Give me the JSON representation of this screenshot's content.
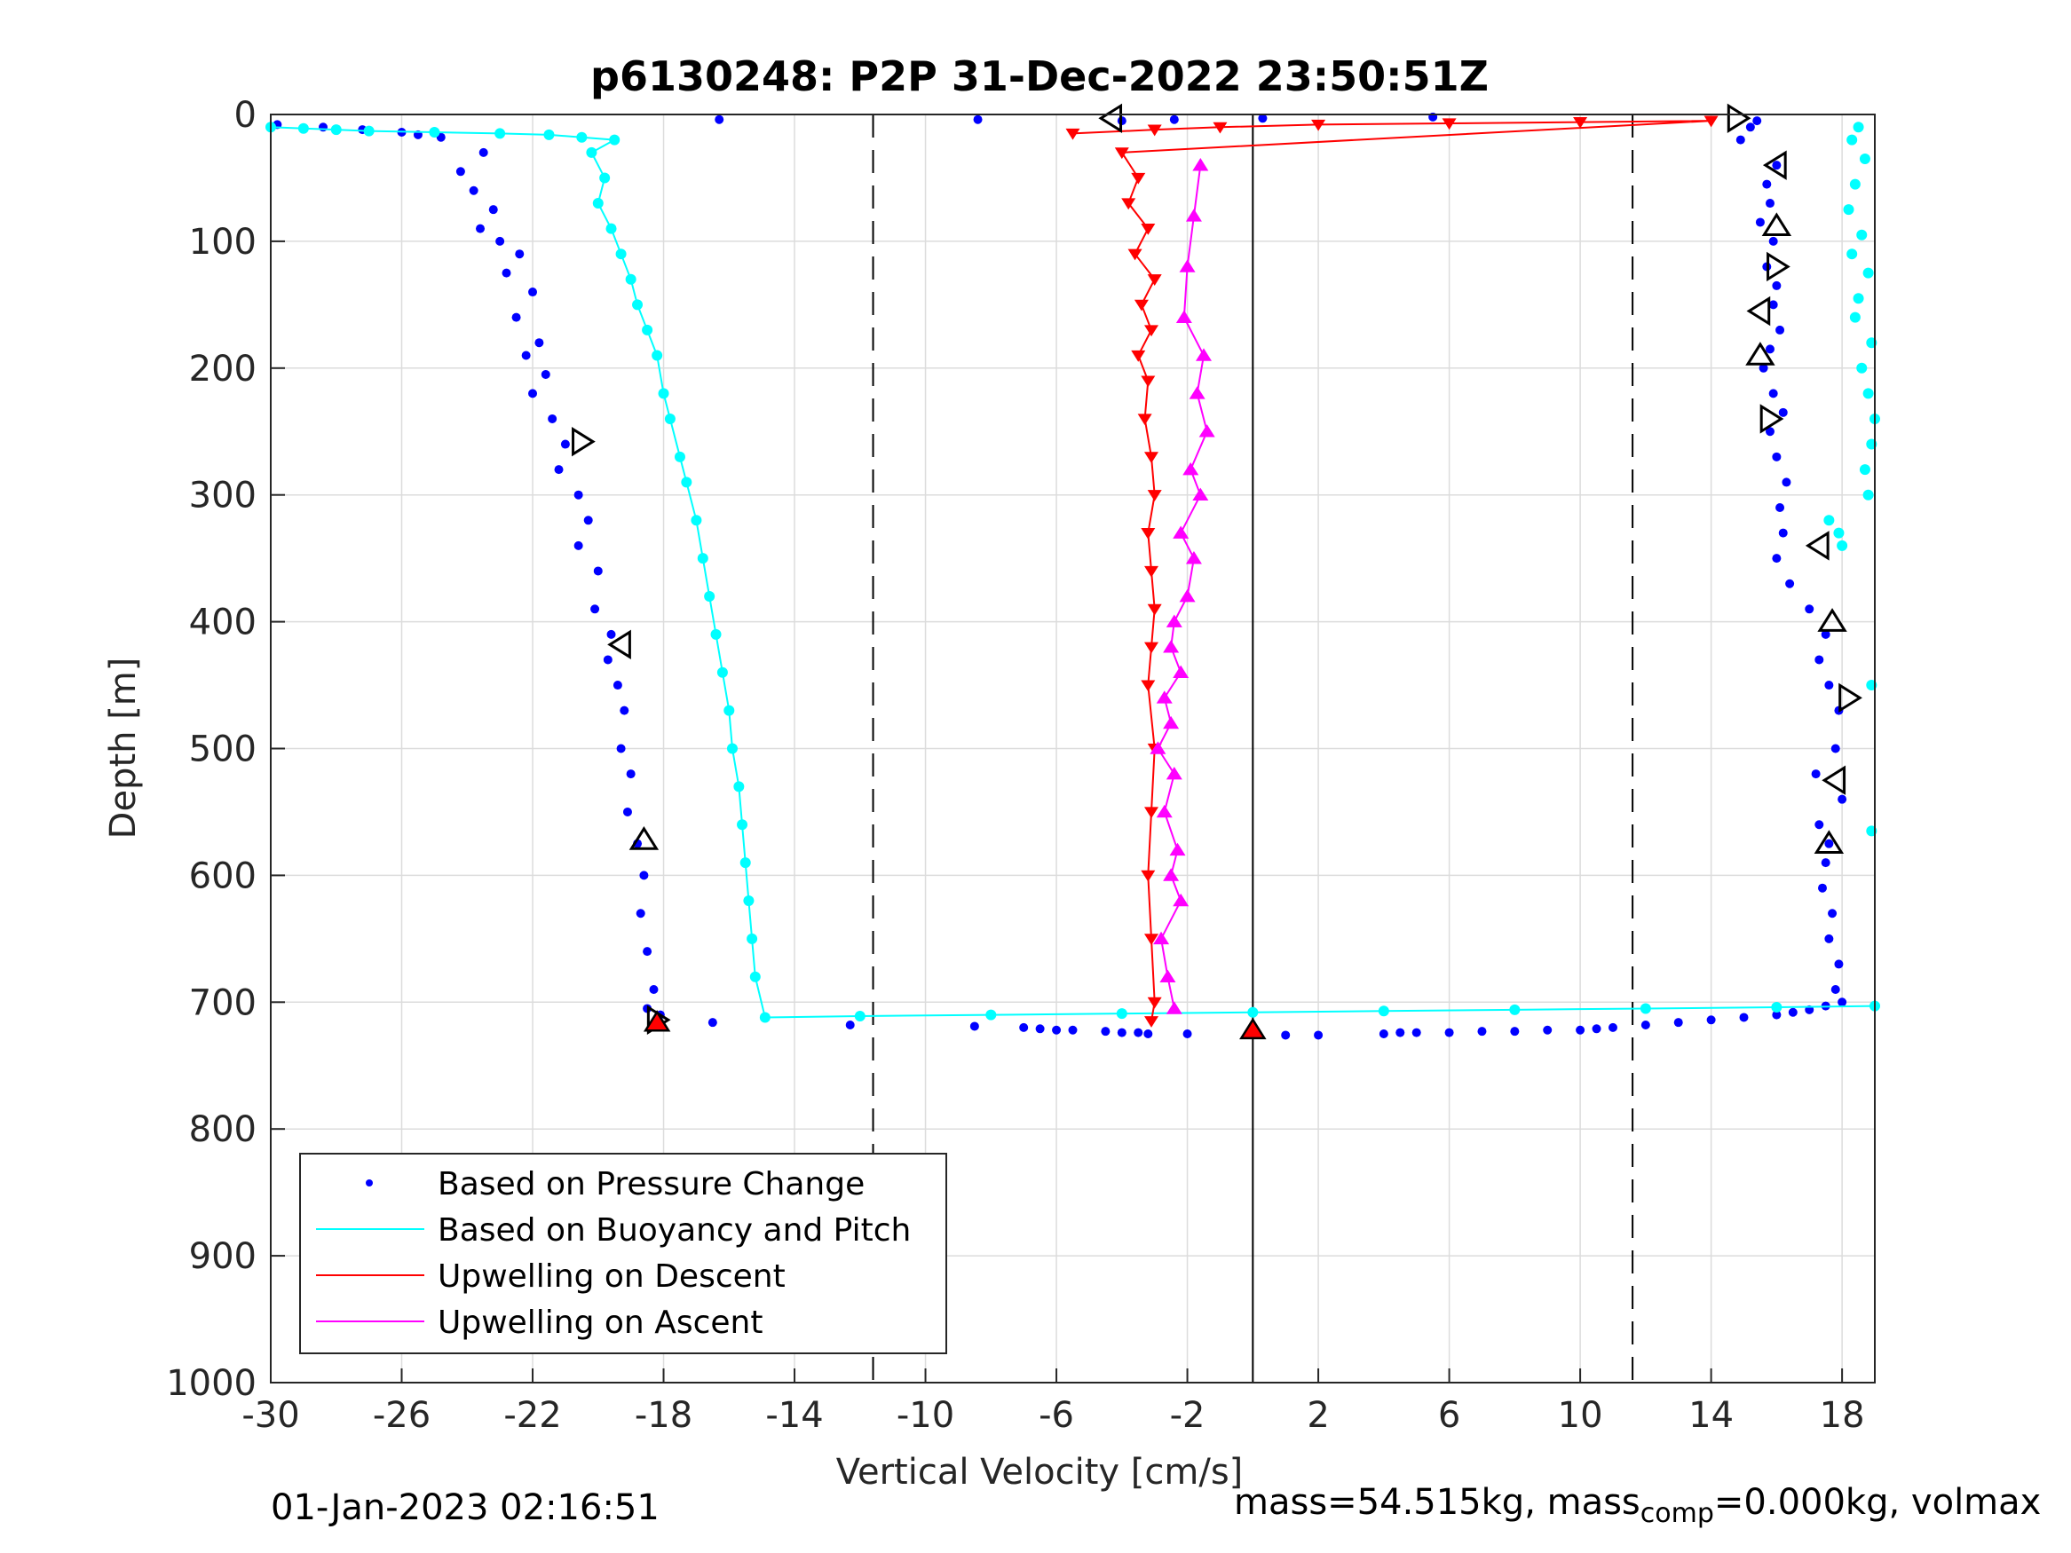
{
  "chart_data": {
    "type": "scatter",
    "title": "p6130248: P2P 31-Dec-2022 23:50:51Z",
    "xlabel": "Vertical Velocity [cm/s]",
    "ylabel": "Depth [m]",
    "xlim": [
      -30,
      19
    ],
    "ylim": [
      0,
      1000
    ],
    "y_reversed": true,
    "grid": true,
    "x_ticks": [
      -30,
      -26,
      -22,
      -18,
      -14,
      -10,
      -6,
      -2,
      2,
      6,
      10,
      14,
      18
    ],
    "y_ticks": [
      0,
      100,
      200,
      300,
      400,
      500,
      600,
      700,
      800,
      900,
      1000
    ],
    "vlines": [
      {
        "x": -11.6,
        "style": "dashed"
      },
      {
        "x": 0,
        "style": "solid"
      },
      {
        "x": 11.6,
        "style": "dashed"
      }
    ],
    "legend": {
      "placement": "bottom-left",
      "entries": [
        {
          "label": "Based on Pressure Change",
          "color": "#0000ff",
          "marker": "dot"
        },
        {
          "label": "Based on Buoyancy and Pitch",
          "color": "#00ffff",
          "marker": "line"
        },
        {
          "label": "Upwelling on Descent",
          "color": "#ff0000",
          "marker": "line"
        },
        {
          "label": "Upwelling on Ascent",
          "color": "#ff00ff",
          "marker": "line"
        }
      ]
    },
    "series": [
      {
        "name": "Based on Pressure Change (descent)",
        "color": "#0000ff",
        "x": [
          -29.8,
          -28.4,
          -27.2,
          -26.0,
          -25.5,
          -24.8,
          -23.5,
          -24.2,
          -23.8,
          -23.2,
          -23.6,
          -23.0,
          -22.4,
          -22.8,
          -22.0,
          -22.5,
          -21.8,
          -22.2,
          -21.6,
          -22.0,
          -21.4,
          -21.0,
          -21.2,
          -20.6,
          -20.3,
          -20.6,
          -20.0,
          -20.1,
          -19.6,
          -19.7,
          -19.4,
          -19.2,
          -19.3,
          -19.0,
          -19.1,
          -18.8,
          -18.6,
          -18.7,
          -18.5,
          -18.3,
          -18.5,
          -18.1,
          -18.2
        ],
        "y": [
          8,
          10,
          12,
          14,
          16,
          18,
          30,
          45,
          60,
          75,
          90,
          100,
          110,
          125,
          140,
          160,
          180,
          190,
          205,
          220,
          240,
          260,
          280,
          300,
          320,
          340,
          360,
          390,
          410,
          430,
          450,
          470,
          500,
          520,
          550,
          575,
          600,
          630,
          660,
          690,
          705,
          710,
          714
        ]
      },
      {
        "name": "Based on Pressure Change (ascent)",
        "color": "#0000ff",
        "x": [
          18.0,
          17.8,
          17.9,
          17.6,
          17.7,
          17.4,
          17.5,
          17.6,
          17.3,
          18.0,
          17.2,
          17.8,
          17.9,
          17.6,
          17.3,
          17.5,
          17.0,
          16.4,
          16.0,
          16.2,
          16.1,
          16.3,
          16.0,
          15.8,
          16.2,
          15.9,
          15.6,
          15.8,
          16.1,
          15.9,
          16.0,
          15.7,
          15.9,
          15.5,
          15.8,
          15.7,
          16.0,
          14.9,
          15.2,
          15.4
        ],
        "y": [
          700,
          690,
          670,
          650,
          630,
          610,
          590,
          575,
          560,
          540,
          520,
          500,
          470,
          450,
          430,
          410,
          390,
          370,
          350,
          330,
          310,
          290,
          270,
          250,
          235,
          220,
          200,
          185,
          170,
          150,
          135,
          120,
          100,
          85,
          70,
          55,
          40,
          20,
          10,
          5
        ]
      },
      {
        "name": "Based on Pressure Change (transition)",
        "color": "#0000ff",
        "x": [
          -16.5,
          -12.3,
          -8.5,
          -7.0,
          -6.5,
          -6.0,
          -5.5,
          -4.5,
          -4.0,
          -3.5,
          -3.2,
          -2.0,
          1.0,
          2.0,
          4.0,
          4.5,
          5.0,
          6.0,
          7.0,
          8.0,
          9.0,
          10.0,
          10.5,
          11.0,
          12.0,
          13.0,
          14.0,
          15.0,
          16.0,
          16.5,
          17.0,
          17.5,
          -16.3,
          -8.4,
          -4.0,
          -2.4,
          0.3,
          5.5
        ],
        "y": [
          716,
          718,
          719,
          720,
          721,
          722,
          722,
          723,
          724,
          724,
          725,
          725,
          726,
          726,
          725,
          724,
          724,
          724,
          723,
          723,
          722,
          722,
          721,
          720,
          718,
          716,
          714,
          712,
          710,
          708,
          706,
          703,
          4,
          4,
          5,
          4,
          3,
          2
        ]
      },
      {
        "name": "Based on Buoyancy and Pitch",
        "color": "#00ffff",
        "x": [
          -30.0,
          -29.0,
          -28.0,
          -27.0,
          -25.0,
          -23.0,
          -21.5,
          -20.5,
          -19.5,
          -20.2,
          -19.8,
          -20.0,
          -19.6,
          -19.3,
          -19.0,
          -18.8,
          -18.5,
          -18.2,
          -18.0,
          -17.8,
          -17.5,
          -17.3,
          -17.0,
          -16.8,
          -16.6,
          -16.4,
          -16.2,
          -16.0,
          -15.9,
          -15.7,
          -15.6,
          -15.5,
          -15.4,
          -15.3,
          -15.2,
          -14.9,
          -12.0,
          -8.0,
          -4.0,
          0.0,
          4.0,
          8.0,
          12.0,
          16.0,
          19.0
        ],
        "y": [
          10,
          11,
          12,
          13,
          14,
          15,
          16,
          18,
          20,
          30,
          50,
          70,
          90,
          110,
          130,
          150,
          170,
          190,
          220,
          240,
          270,
          290,
          320,
          350,
          380,
          410,
          440,
          470,
          500,
          530,
          560,
          590,
          620,
          650,
          680,
          712,
          711,
          710,
          709,
          708,
          707,
          706,
          705,
          704,
          703
        ]
      },
      {
        "name": "Based on Buoyancy and Pitch (ascent)",
        "color": "#00ffff",
        "x": [
          18.5,
          18.3,
          18.7,
          18.4,
          18.2,
          18.6,
          18.3,
          18.8,
          18.5,
          18.4,
          18.9,
          18.6,
          18.8,
          19.0,
          18.9,
          18.7,
          18.8,
          17.6,
          17.9,
          18.0,
          18.9,
          18.9
        ],
        "y": [
          10,
          20,
          35,
          55,
          75,
          95,
          110,
          125,
          145,
          160,
          180,
          200,
          220,
          240,
          260,
          280,
          300,
          320,
          330,
          340,
          450,
          565
        ]
      },
      {
        "name": "Upwelling on Descent",
        "color": "#ff0000",
        "x": [
          -5.5,
          -3.0,
          -1.0,
          2.0,
          6.0,
          10.0,
          14.0,
          -4.0,
          -3.5,
          -3.8,
          -3.2,
          -3.6,
          -3.0,
          -3.4,
          -3.1,
          -3.5,
          -3.2,
          -3.3,
          -3.1,
          -3.0,
          -3.2,
          -3.1,
          -3.0,
          -3.1,
          -3.2,
          -3.0,
          -3.1,
          -3.2,
          -3.1,
          -3.0,
          -3.1
        ],
        "y": [
          15,
          12,
          10,
          8,
          7,
          6,
          5,
          30,
          50,
          70,
          90,
          110,
          130,
          150,
          170,
          190,
          210,
          240,
          270,
          300,
          330,
          360,
          390,
          420,
          450,
          500,
          550,
          600,
          650,
          700,
          715
        ]
      },
      {
        "name": "Upwelling on Ascent",
        "color": "#ff00ff",
        "x": [
          -2.4,
          -2.6,
          -2.8,
          -2.2,
          -2.5,
          -2.3,
          -2.7,
          -2.4,
          -2.9,
          -2.5,
          -2.7,
          -2.2,
          -2.5,
          -2.4,
          -2.0,
          -1.8,
          -2.2,
          -1.6,
          -1.9,
          -1.4,
          -1.7,
          -1.5,
          -2.1,
          -2.0,
          -1.8,
          -1.6
        ],
        "y": [
          705,
          680,
          650,
          620,
          600,
          580,
          550,
          520,
          500,
          480,
          460,
          440,
          420,
          400,
          380,
          350,
          330,
          300,
          280,
          250,
          220,
          190,
          160,
          120,
          80,
          40
        ]
      },
      {
        "name": "Markers black (descent)",
        "color": "#000000",
        "x": [
          -20.5,
          -19.3,
          -18.6,
          -18.2,
          -4.3
        ],
        "y": [
          258,
          418,
          572,
          714,
          3
        ]
      },
      {
        "name": "Markers black (ascent)",
        "color": "#000000",
        "x": [
          14.8,
          16.0,
          16.0,
          16.0,
          15.5,
          15.5,
          15.8,
          17.3,
          17.7,
          18.2,
          17.8,
          17.6
        ],
        "y": [
          3,
          40,
          88,
          120,
          155,
          190,
          240,
          340,
          400,
          460,
          525,
          575
        ]
      }
    ]
  },
  "footer": {
    "timestamp": "01-Jan-2023 02:16:51",
    "mass_text": "mass=54.515kg, mass",
    "sub_text": "comp",
    "rest_text": "=0.000kg, volmax"
  }
}
